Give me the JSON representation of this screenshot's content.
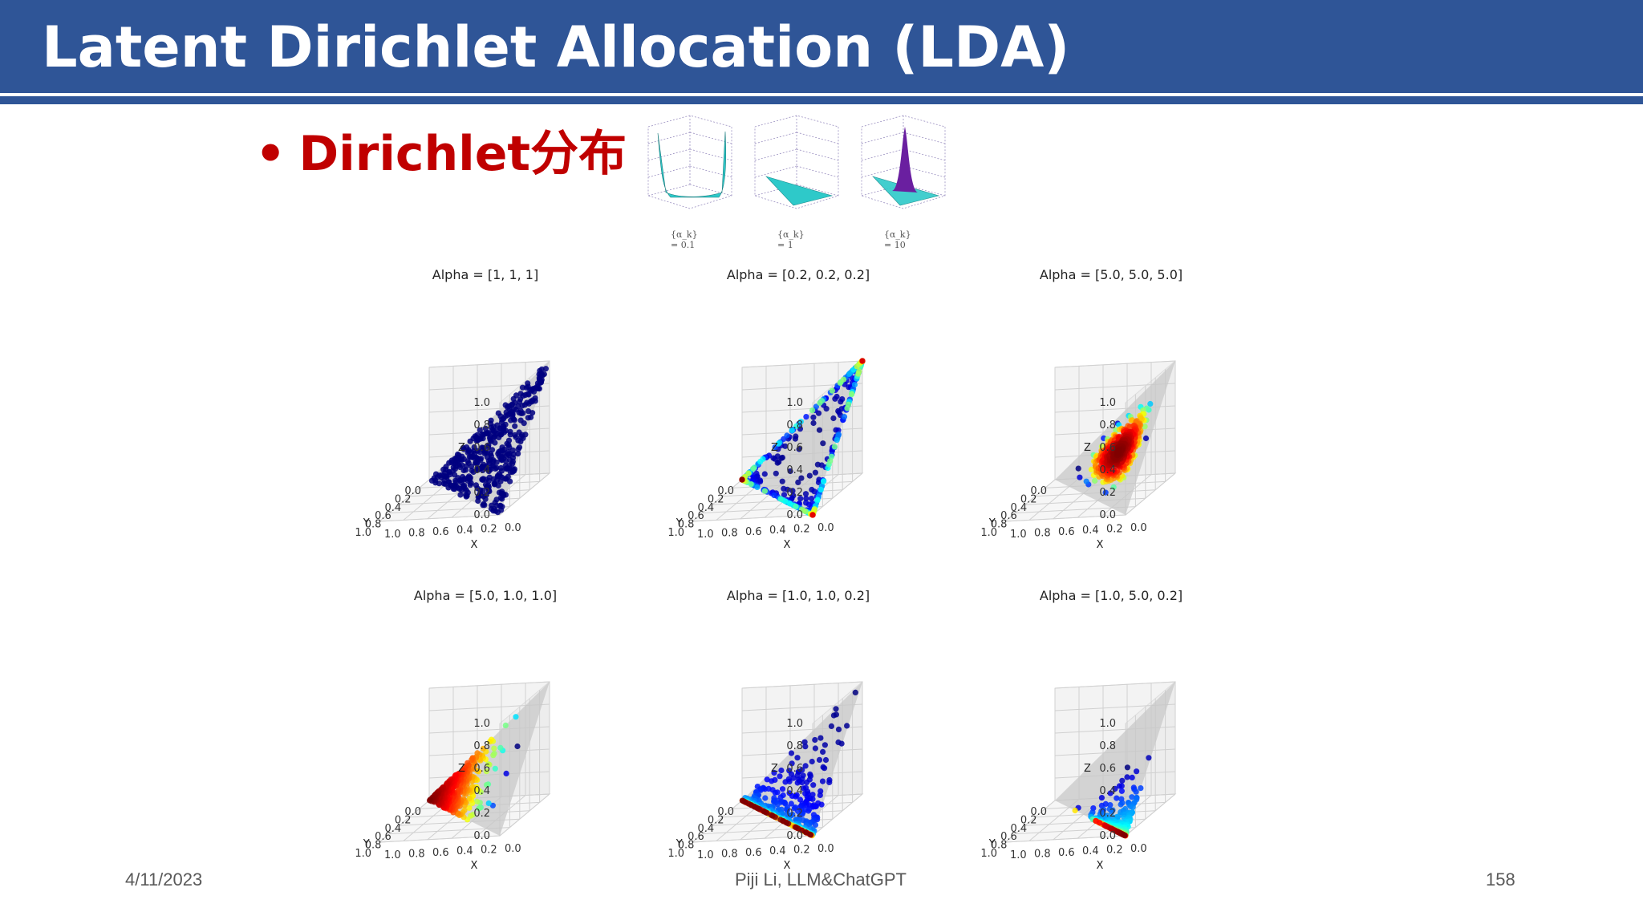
{
  "slide": {
    "title": "Latent Dirichlet Allocation (LDA)",
    "bullet": "Dirichlet分布",
    "bullet_marker": "•",
    "colors": {
      "header": "#2f5597",
      "bullet": "#c00000",
      "surface": "#2ec9c9",
      "peak": "#6a1fa0"
    }
  },
  "small_plots": [
    {
      "caption": "{α_k} = 0.1",
      "shape": "valley"
    },
    {
      "caption": "{α_k} = 1",
      "shape": "flat"
    },
    {
      "caption": "{α_k} = 10",
      "shape": "peak"
    }
  ],
  "chart_data": [
    {
      "type": "scatter",
      "title": "Alpha = [1, 1, 1]",
      "alpha": [
        1,
        1,
        1
      ],
      "xlabel": "X",
      "ylabel": "Y",
      "zlabel": "Z",
      "xlim": [
        0,
        1
      ],
      "ylim": [
        0,
        1
      ],
      "zlim": [
        0,
        1
      ],
      "ticks": [
        "0.0",
        "0.2",
        "0.4",
        "0.6",
        "0.8",
        "1.0"
      ]
    },
    {
      "type": "scatter",
      "title": "Alpha = [0.2, 0.2, 0.2]",
      "alpha": [
        0.2,
        0.2,
        0.2
      ],
      "xlabel": "X",
      "ylabel": "Y",
      "zlabel": "Z",
      "xlim": [
        0,
        1
      ],
      "ylim": [
        0,
        1
      ],
      "zlim": [
        0,
        1
      ],
      "ticks": [
        "0.0",
        "0.2",
        "0.4",
        "0.6",
        "0.8",
        "1.0"
      ]
    },
    {
      "type": "scatter",
      "title": "Alpha = [5.0, 5.0, 5.0]",
      "alpha": [
        5.0,
        5.0,
        5.0
      ],
      "xlabel": "X",
      "ylabel": "Y",
      "zlabel": "Z",
      "xlim": [
        0,
        1
      ],
      "ylim": [
        0,
        1
      ],
      "zlim": [
        0,
        1
      ],
      "ticks": [
        "0.0",
        "0.2",
        "0.4",
        "0.6",
        "0.8",
        "1.0"
      ]
    },
    {
      "type": "scatter",
      "title": "Alpha = [5.0, 1.0, 1.0]",
      "alpha": [
        5.0,
        1.0,
        1.0
      ],
      "xlabel": "X",
      "ylabel": "Y",
      "zlabel": "Z",
      "xlim": [
        0,
        1
      ],
      "ylim": [
        0,
        1
      ],
      "zlim": [
        0,
        1
      ],
      "ticks": [
        "0.0",
        "0.2",
        "0.4",
        "0.6",
        "0.8",
        "1.0"
      ]
    },
    {
      "type": "scatter",
      "title": "Alpha = [1.0, 1.0, 0.2]",
      "alpha": [
        1.0,
        1.0,
        0.2
      ],
      "xlabel": "X",
      "ylabel": "Y",
      "zlabel": "Z",
      "xlim": [
        0,
        1
      ],
      "ylim": [
        0,
        1
      ],
      "zlim": [
        0,
        1
      ],
      "ticks": [
        "0.0",
        "0.2",
        "0.4",
        "0.6",
        "0.8",
        "1.0"
      ]
    },
    {
      "type": "scatter",
      "title": "Alpha = [1.0, 5.0, 0.2]",
      "alpha": [
        1.0,
        5.0,
        0.2
      ],
      "xlabel": "X",
      "ylabel": "Y",
      "zlabel": "Z",
      "xlim": [
        0,
        1
      ],
      "ylim": [
        0,
        1
      ],
      "zlim": [
        0,
        1
      ],
      "ticks": [
        "0.0",
        "0.2",
        "0.4",
        "0.6",
        "0.8",
        "1.0"
      ]
    }
  ],
  "footer": {
    "date": "4/11/2023",
    "author": "Piji Li, LLM&ChatGPT",
    "page": "158"
  }
}
